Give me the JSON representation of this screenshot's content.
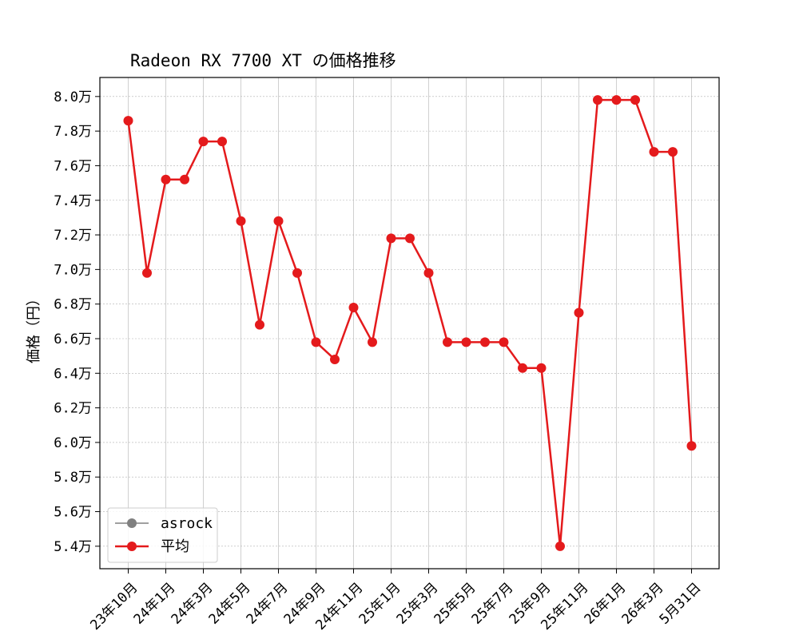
{
  "chart_data": {
    "type": "line",
    "title": "Radeon RX 7700 XT の価格推移",
    "xlabel": "",
    "ylabel": "価格（円）",
    "ylim": [
      52700,
      81100
    ],
    "y_tick_values": [
      54000,
      56000,
      58000,
      60000,
      62000,
      64000,
      66000,
      68000,
      70000,
      72000,
      74000,
      76000,
      78000,
      80000
    ],
    "y_tick_labels": [
      "5.4万",
      "5.6万",
      "5.8万",
      "6.0万",
      "6.2万",
      "6.4万",
      "6.6万",
      "6.8万",
      "7.0万",
      "7.2万",
      "7.4万",
      "7.6万",
      "7.8万",
      "8.0万"
    ],
    "x_tick_labels": [
      "23年10月",
      "24年1月",
      "24年3月",
      "24年5月",
      "24年7月",
      "24年9月",
      "24年11月",
      "25年1月",
      "25年3月",
      "25年5月",
      "25年7月",
      "25年9月",
      "25年11月",
      "26年1月",
      "26年3月",
      "5月31日"
    ],
    "series": [
      {
        "name": "asrock",
        "color": "#808080",
        "values": [
          78600,
          69800,
          75200,
          75200,
          77400,
          77400,
          72800,
          66800,
          72800,
          69800,
          65800,
          64800,
          67800,
          65800,
          71800,
          71800,
          69800,
          65800,
          65800,
          65800,
          65800,
          64300,
          64300,
          54000,
          67500,
          79800,
          79800,
          79800,
          76800,
          76800,
          59800
        ]
      },
      {
        "name": "平均",
        "color": "#e41a1c",
        "values": [
          78600,
          69800,
          75200,
          75200,
          77400,
          77400,
          72800,
          66800,
          72800,
          69800,
          65800,
          64800,
          67800,
          65800,
          71800,
          71800,
          69800,
          65800,
          65800,
          65800,
          65800,
          64300,
          64300,
          54000,
          67500,
          79800,
          79800,
          79800,
          76800,
          76800,
          59800
        ]
      }
    ],
    "grid": true,
    "legend_position": "lower-left"
  }
}
